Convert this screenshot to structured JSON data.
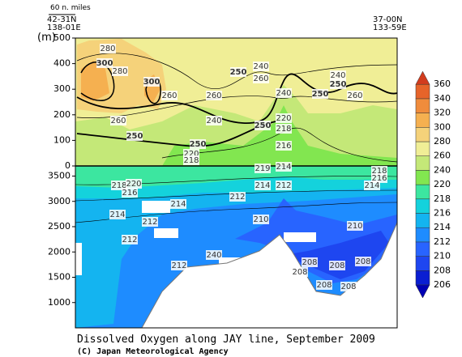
{
  "chart_data": {
    "type": "contour",
    "title": "Dissolved Oxygen along JAY line, September 2009",
    "credit": "(C) Japan Meteorological Agency",
    "y_label": "(m)",
    "scale_label": "60 n. miles",
    "start_station": [
      "42-31N",
      "138-01E"
    ],
    "end_station": [
      "37-00N",
      "133-59E"
    ],
    "panels": [
      {
        "ylim": [
          0,
          500
        ],
        "yticks": [
          0,
          100,
          200,
          300,
          400,
          500
        ]
      },
      {
        "ylim": [
          500,
          3700
        ],
        "yticks": [
          1000,
          1500,
          2000,
          2500,
          3000,
          3500
        ]
      }
    ],
    "levels": [
      206,
      208,
      210,
      212,
      214,
      216,
      218,
      220,
      240,
      260,
      280,
      300,
      320,
      340,
      360
    ],
    "colors": [
      "#0000b4",
      "#0a1ed2",
      "#1e46f0",
      "#2864ff",
      "#1e8cff",
      "#14b4f0",
      "#14d2dc",
      "#3ce6a0",
      "#82e650",
      "#c4e878",
      "#f0ee96",
      "#f5d27a",
      "#f5b050",
      "#f08c3c",
      "#e6642a",
      "#d23c1e"
    ],
    "contour_labels": [
      280,
      280,
      300,
      300,
      260,
      260,
      240,
      260,
      250,
      240,
      250,
      240,
      250,
      260,
      260,
      240,
      250,
      220,
      218,
      250,
      250,
      216,
      220,
      218,
      218,
      220,
      216,
      219,
      214,
      218,
      216,
      214,
      212,
      214,
      212,
      214,
      214,
      212,
      210,
      210,
      212,
      240,
      212,
      208,
      208,
      208,
      208,
      208,
      208
    ]
  }
}
